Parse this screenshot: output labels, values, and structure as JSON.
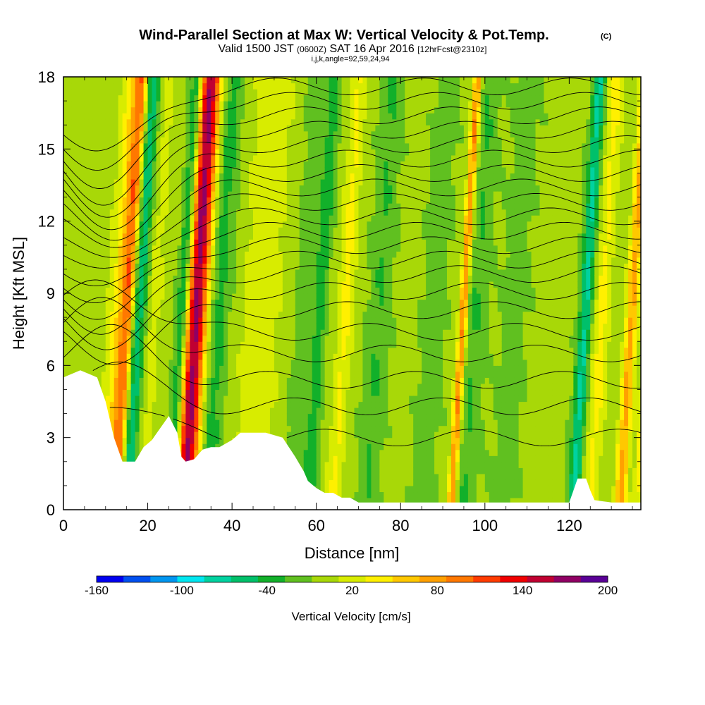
{
  "title": {
    "main": "Wind-Parallel Section at Max W: Vertical Velocity & Pot.Temp.",
    "copyright": "(C)",
    "valid_prefix": "Valid 1500 JST",
    "valid_z": "(0600Z)",
    "valid_date": "SAT 16 Apr 2016",
    "valid_fcst": "[12hrFcst@2310z]",
    "indices": "i,j,k,angle=92,59,24,94"
  },
  "chart_data": {
    "type": "heatmap",
    "xlabel": "Distance [nm]",
    "ylabel": "Height [Kft MSL]",
    "xlim": [
      0,
      137
    ],
    "ylim": [
      0,
      18
    ],
    "x_ticks": [
      "0",
      "20",
      "40",
      "60",
      "80",
      "100",
      "120"
    ],
    "y_ticks": [
      "0",
      "3",
      "6",
      "9",
      "12",
      "15",
      "18"
    ],
    "colorbar": {
      "label": "Vertical Velocity [cm/s]",
      "ticks": [
        "-160",
        "-100",
        "-40",
        "20",
        "80",
        "140",
        "200"
      ],
      "levels": [
        -160,
        -140,
        -120,
        -100,
        -80,
        -60,
        -40,
        -20,
        0,
        20,
        40,
        60,
        80,
        100,
        120,
        140,
        160,
        180,
        200
      ],
      "colors": [
        "#0000f0",
        "#0050f0",
        "#0096f0",
        "#00e6f0",
        "#00d2a0",
        "#00c06a",
        "#12b02a",
        "#60c020",
        "#a8d808",
        "#d8ec00",
        "#fff000",
        "#ffc800",
        "#ffa000",
        "#ff7800",
        "#ff3c00",
        "#f00000",
        "#c00032",
        "#900064",
        "#5a0096"
      ]
    },
    "terrain": [
      [
        0,
        5.5
      ],
      [
        4,
        5.8
      ],
      [
        8,
        5.5
      ],
      [
        10,
        4.5
      ],
      [
        12,
        3
      ],
      [
        14,
        2
      ],
      [
        17,
        2
      ],
      [
        19,
        2.6
      ],
      [
        21,
        2.9
      ],
      [
        23,
        3.4
      ],
      [
        25,
        3.9
      ],
      [
        27,
        3.2
      ],
      [
        28,
        2.2
      ],
      [
        29,
        2
      ],
      [
        31,
        2.1
      ],
      [
        33,
        2.5
      ],
      [
        35,
        2.6
      ],
      [
        37,
        2.6
      ],
      [
        40,
        2.9
      ],
      [
        42,
        3.2
      ],
      [
        48,
        3.2
      ],
      [
        52,
        3.0
      ],
      [
        55,
        2.2
      ],
      [
        57,
        1.6
      ],
      [
        58,
        1.2
      ],
      [
        60,
        0.9
      ],
      [
        62,
        0.7
      ],
      [
        64,
        0.7
      ],
      [
        66,
        0.5
      ],
      [
        68,
        0.5
      ],
      [
        70,
        0.3
      ],
      [
        82,
        0.3
      ],
      [
        100,
        0.3
      ],
      [
        120,
        0.3
      ],
      [
        121,
        0.8
      ],
      [
        122,
        1.3
      ],
      [
        124,
        1.3
      ],
      [
        125,
        0.8
      ],
      [
        126,
        0.4
      ],
      [
        130,
        0.3
      ],
      [
        137,
        0.3
      ]
    ],
    "w_bands": [
      {
        "x": 11,
        "w": 60,
        "width": 3.0
      },
      {
        "x": 15,
        "w": -100,
        "width": 2.5
      },
      {
        "x": 12.5,
        "w": 90,
        "width": 1.6
      },
      {
        "x": 28.5,
        "w": 120,
        "width": 2.2
      },
      {
        "x": 30,
        "w": 80,
        "width": 3.5
      },
      {
        "x": 33,
        "w": -60,
        "width": 3.0
      },
      {
        "x": 25.5,
        "w": -60,
        "width": 1.5
      },
      {
        "x": 17,
        "w": 45,
        "width": 3.0
      },
      {
        "x": 44,
        "w": 30,
        "width": 5.0
      },
      {
        "x": 54,
        "w": -20,
        "width": 2.0
      },
      {
        "x": 58,
        "w": -40,
        "width": 1.5
      },
      {
        "x": 64,
        "w": 40,
        "width": 2.0
      },
      {
        "x": 72,
        "w": -25,
        "width": 2.5
      },
      {
        "x": 85,
        "w": -20,
        "width": 2.5
      },
      {
        "x": 92,
        "w": 100,
        "width": 1.0
      },
      {
        "x": 95,
        "w": -25,
        "width": 2.5
      },
      {
        "x": 104,
        "w": -15,
        "width": 3.0
      },
      {
        "x": 121,
        "w": -70,
        "width": 1.5
      },
      {
        "x": 125,
        "w": 40,
        "width": 2.0
      },
      {
        "x": 132,
        "w": 80,
        "width": 1.5
      },
      {
        "x": 136,
        "w": 40,
        "width": 1.2
      }
    ],
    "theta_contours": [
      {
        "base": 3.0,
        "amp": 1.6
      },
      {
        "base": 4.3,
        "amp": 1.8
      },
      {
        "base": 5.4,
        "amp": 2.0
      },
      {
        "base": 6.5,
        "amp": 2.0
      },
      {
        "base": 7.4,
        "amp": 2.0
      },
      {
        "base": 8.3,
        "amp": 2.0
      },
      {
        "base": 9.1,
        "amp": 2.1
      },
      {
        "base": 9.8,
        "amp": 2.2
      },
      {
        "base": 10.4,
        "amp": 2.3
      },
      {
        "base": 11.0,
        "amp": 2.4
      },
      {
        "base": 11.6,
        "amp": 2.5
      },
      {
        "base": 12.2,
        "amp": 2.5
      },
      {
        "base": 12.8,
        "amp": 2.6
      },
      {
        "base": 13.4,
        "amp": 2.6
      },
      {
        "base": 14.0,
        "amp": 2.7
      },
      {
        "base": 14.6,
        "amp": 2.7
      },
      {
        "base": 15.2,
        "amp": 2.7
      },
      {
        "base": 15.8,
        "amp": 2.8
      },
      {
        "base": 16.4,
        "amp": 2.8
      },
      {
        "base": 17.0,
        "amp": 2.8
      },
      {
        "base": 17.6,
        "amp": 2.8
      }
    ]
  }
}
